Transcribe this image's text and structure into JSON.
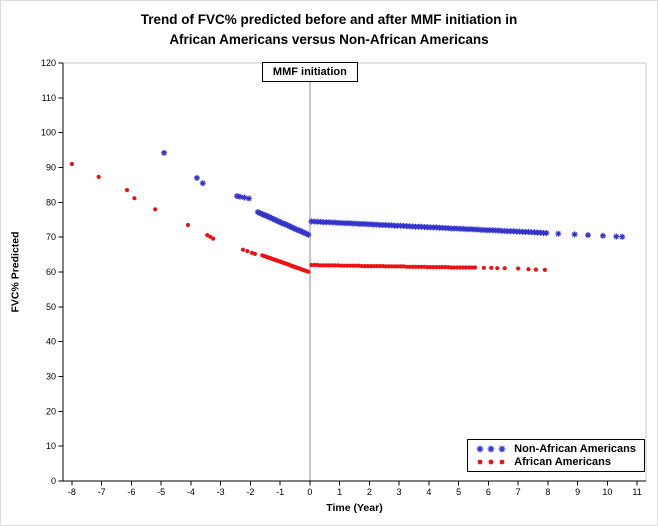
{
  "title": {
    "line1": "Trend of FVC% predicted before and after MMF initiation in",
    "line2": "African Americans versus Non-African Americans"
  },
  "chart_data": {
    "type": "scatter",
    "title": "Trend of FVC% predicted before and after MMF initiation in African Americans versus Non-African Americans",
    "xlabel": "Time (Year)",
    "ylabel": "FVC% Predicted",
    "xlim": [
      -8.3,
      11.3
    ],
    "ylim": [
      0,
      120
    ],
    "x_ticks": [
      -8,
      -7,
      -6,
      -5,
      -4,
      -3,
      -2,
      -1,
      0,
      1,
      2,
      3,
      4,
      5,
      6,
      7,
      8,
      9,
      10,
      11
    ],
    "y_ticks": [
      0,
      10,
      20,
      30,
      40,
      50,
      60,
      70,
      80,
      90,
      100,
      110,
      120
    ],
    "grid": false,
    "reference_line": {
      "x": 0,
      "label": "MMF initiation",
      "color": "#8c8c8c"
    },
    "legend": {
      "position": "bottom-right",
      "entries": [
        {
          "name": "Non-African Americans",
          "marker": "star",
          "color": "#3333cc"
        },
        {
          "name": "African Americans",
          "marker": "circle",
          "color": "#ee1111"
        }
      ]
    },
    "series": [
      {
        "name": "Non-African Americans",
        "marker": "star",
        "color": "#3333cc",
        "points": [
          [
            -4.9,
            94.2
          ],
          [
            -3.8,
            87.0
          ],
          [
            -3.6,
            85.5
          ],
          [
            -2.45,
            81.8
          ],
          [
            -2.35,
            81.6
          ],
          [
            -2.2,
            81.4
          ],
          [
            -2.05,
            81.1
          ],
          [
            -1.75,
            77.2
          ],
          [
            -1.7,
            77.0
          ],
          [
            -1.65,
            76.8
          ],
          [
            -1.6,
            76.6
          ],
          [
            -1.55,
            76.4
          ],
          [
            -1.5,
            76.3
          ],
          [
            -1.45,
            76.1
          ],
          [
            -1.4,
            75.9
          ],
          [
            -1.35,
            75.7
          ],
          [
            -1.3,
            75.5
          ],
          [
            -1.25,
            75.3
          ],
          [
            -1.2,
            75.1
          ],
          [
            -1.15,
            74.9
          ],
          [
            -1.1,
            74.7
          ],
          [
            -1.05,
            74.5
          ],
          [
            -1.0,
            74.3
          ],
          [
            -0.95,
            74.1
          ],
          [
            -0.9,
            73.9
          ],
          [
            -0.85,
            73.8
          ],
          [
            -0.8,
            73.6
          ],
          [
            -0.75,
            73.4
          ],
          [
            -0.7,
            73.2
          ],
          [
            -0.65,
            73.0
          ],
          [
            -0.6,
            72.8
          ],
          [
            -0.55,
            72.6
          ],
          [
            -0.5,
            72.4
          ],
          [
            -0.45,
            72.2
          ],
          [
            -0.4,
            72.0
          ],
          [
            -0.35,
            71.9
          ],
          [
            -0.3,
            71.7
          ],
          [
            -0.25,
            71.5
          ],
          [
            -0.2,
            71.3
          ],
          [
            -0.15,
            71.1
          ],
          [
            -0.1,
            70.9
          ],
          [
            -0.05,
            70.7
          ],
          [
            0.05,
            74.5
          ],
          [
            0.15,
            74.5
          ],
          [
            0.25,
            74.4
          ],
          [
            0.35,
            74.4
          ],
          [
            0.45,
            74.3
          ],
          [
            0.55,
            74.3
          ],
          [
            0.65,
            74.3
          ],
          [
            0.75,
            74.2
          ],
          [
            0.85,
            74.2
          ],
          [
            0.95,
            74.1
          ],
          [
            1.05,
            74.1
          ],
          [
            1.15,
            74.0
          ],
          [
            1.25,
            74.0
          ],
          [
            1.35,
            74.0
          ],
          [
            1.45,
            73.9
          ],
          [
            1.55,
            73.9
          ],
          [
            1.65,
            73.8
          ],
          [
            1.75,
            73.8
          ],
          [
            1.85,
            73.8
          ],
          [
            1.95,
            73.7
          ],
          [
            2.05,
            73.7
          ],
          [
            2.15,
            73.6
          ],
          [
            2.25,
            73.6
          ],
          [
            2.35,
            73.5
          ],
          [
            2.45,
            73.5
          ],
          [
            2.55,
            73.5
          ],
          [
            2.65,
            73.4
          ],
          [
            2.75,
            73.4
          ],
          [
            2.85,
            73.3
          ],
          [
            2.95,
            73.3
          ],
          [
            3.05,
            73.3
          ],
          [
            3.15,
            73.2
          ],
          [
            3.25,
            73.2
          ],
          [
            3.35,
            73.1
          ],
          [
            3.45,
            73.1
          ],
          [
            3.55,
            73.0
          ],
          [
            3.65,
            73.0
          ],
          [
            3.75,
            73.0
          ],
          [
            3.85,
            72.9
          ],
          [
            3.95,
            72.9
          ],
          [
            4.05,
            72.8
          ],
          [
            4.15,
            72.8
          ],
          [
            4.25,
            72.8
          ],
          [
            4.35,
            72.7
          ],
          [
            4.45,
            72.7
          ],
          [
            4.55,
            72.6
          ],
          [
            4.65,
            72.6
          ],
          [
            4.75,
            72.5
          ],
          [
            4.85,
            72.5
          ],
          [
            4.95,
            72.5
          ],
          [
            5.05,
            72.4
          ],
          [
            5.15,
            72.4
          ],
          [
            5.25,
            72.3
          ],
          [
            5.35,
            72.3
          ],
          [
            5.45,
            72.3
          ],
          [
            5.55,
            72.2
          ],
          [
            5.65,
            72.2
          ],
          [
            5.75,
            72.1
          ],
          [
            5.85,
            72.1
          ],
          [
            5.95,
            72.0
          ],
          [
            6.05,
            72.0
          ],
          [
            6.15,
            72.0
          ],
          [
            6.25,
            71.9
          ],
          [
            6.35,
            71.9
          ],
          [
            6.45,
            71.8
          ],
          [
            6.55,
            71.8
          ],
          [
            6.65,
            71.7
          ],
          [
            6.75,
            71.7
          ],
          [
            6.85,
            71.7
          ],
          [
            6.95,
            71.6
          ],
          [
            7.05,
            71.6
          ],
          [
            7.15,
            71.5
          ],
          [
            7.25,
            71.5
          ],
          [
            7.35,
            71.5
          ],
          [
            7.45,
            71.4
          ],
          [
            7.55,
            71.4
          ],
          [
            7.65,
            71.3
          ],
          [
            7.75,
            71.3
          ],
          [
            7.85,
            71.2
          ],
          [
            7.95,
            71.2
          ],
          [
            8.35,
            71.0
          ],
          [
            8.9,
            70.8
          ],
          [
            9.35,
            70.6
          ],
          [
            9.85,
            70.4
          ],
          [
            10.3,
            70.2
          ],
          [
            10.5,
            70.1
          ]
        ]
      },
      {
        "name": "African Americans",
        "marker": "circle",
        "color": "#ee1111",
        "points": [
          [
            -8.0,
            91.0
          ],
          [
            -7.1,
            87.3
          ],
          [
            -6.15,
            83.5
          ],
          [
            -5.9,
            81.2
          ],
          [
            -5.2,
            78.0
          ],
          [
            -4.1,
            73.5
          ],
          [
            -3.45,
            70.6
          ],
          [
            -3.35,
            70.1
          ],
          [
            -3.25,
            69.6
          ],
          [
            -2.25,
            66.4
          ],
          [
            -2.1,
            66.0
          ],
          [
            -1.95,
            65.5
          ],
          [
            -1.85,
            65.2
          ],
          [
            -1.6,
            64.8
          ],
          [
            -1.55,
            64.6
          ],
          [
            -1.5,
            64.5
          ],
          [
            -1.45,
            64.3
          ],
          [
            -1.4,
            64.2
          ],
          [
            -1.35,
            64.0
          ],
          [
            -1.3,
            63.9
          ],
          [
            -1.25,
            63.7
          ],
          [
            -1.2,
            63.6
          ],
          [
            -1.15,
            63.4
          ],
          [
            -1.1,
            63.3
          ],
          [
            -1.05,
            63.1
          ],
          [
            -1.0,
            63.0
          ],
          [
            -0.95,
            62.8
          ],
          [
            -0.9,
            62.7
          ],
          [
            -0.85,
            62.5
          ],
          [
            -0.8,
            62.4
          ],
          [
            -0.75,
            62.2
          ],
          [
            -0.7,
            62.1
          ],
          [
            -0.65,
            61.9
          ],
          [
            -0.6,
            61.7
          ],
          [
            -0.55,
            61.6
          ],
          [
            -0.5,
            61.4
          ],
          [
            -0.45,
            61.3
          ],
          [
            -0.4,
            61.1
          ],
          [
            -0.35,
            61.0
          ],
          [
            -0.3,
            60.8
          ],
          [
            -0.25,
            60.7
          ],
          [
            -0.2,
            60.5
          ],
          [
            -0.15,
            60.4
          ],
          [
            -0.1,
            60.2
          ],
          [
            -0.05,
            60.1
          ],
          [
            0.05,
            62.0
          ],
          [
            0.15,
            62.0
          ],
          [
            0.25,
            62.0
          ],
          [
            0.35,
            61.9
          ],
          [
            0.45,
            61.9
          ],
          [
            0.55,
            61.9
          ],
          [
            0.65,
            61.9
          ],
          [
            0.75,
            61.9
          ],
          [
            0.85,
            61.9
          ],
          [
            0.95,
            61.9
          ],
          [
            1.05,
            61.8
          ],
          [
            1.15,
            61.8
          ],
          [
            1.25,
            61.8
          ],
          [
            1.35,
            61.8
          ],
          [
            1.45,
            61.8
          ],
          [
            1.55,
            61.8
          ],
          [
            1.65,
            61.8
          ],
          [
            1.75,
            61.7
          ],
          [
            1.85,
            61.7
          ],
          [
            1.95,
            61.7
          ],
          [
            2.05,
            61.7
          ],
          [
            2.15,
            61.7
          ],
          [
            2.25,
            61.7
          ],
          [
            2.35,
            61.7
          ],
          [
            2.45,
            61.7
          ],
          [
            2.55,
            61.6
          ],
          [
            2.65,
            61.6
          ],
          [
            2.75,
            61.6
          ],
          [
            2.85,
            61.6
          ],
          [
            2.95,
            61.6
          ],
          [
            3.05,
            61.6
          ],
          [
            3.15,
            61.6
          ],
          [
            3.25,
            61.5
          ],
          [
            3.35,
            61.5
          ],
          [
            3.45,
            61.5
          ],
          [
            3.55,
            61.5
          ],
          [
            3.65,
            61.5
          ],
          [
            3.75,
            61.5
          ],
          [
            3.85,
            61.5
          ],
          [
            3.95,
            61.4
          ],
          [
            4.05,
            61.4
          ],
          [
            4.15,
            61.4
          ],
          [
            4.25,
            61.4
          ],
          [
            4.35,
            61.4
          ],
          [
            4.45,
            61.4
          ],
          [
            4.55,
            61.4
          ],
          [
            4.65,
            61.4
          ],
          [
            4.75,
            61.3
          ],
          [
            4.85,
            61.3
          ],
          [
            4.95,
            61.3
          ],
          [
            5.05,
            61.3
          ],
          [
            5.15,
            61.3
          ],
          [
            5.25,
            61.3
          ],
          [
            5.35,
            61.3
          ],
          [
            5.45,
            61.3
          ],
          [
            5.55,
            61.3
          ],
          [
            5.85,
            61.2
          ],
          [
            6.1,
            61.2
          ],
          [
            6.3,
            61.1
          ],
          [
            6.55,
            61.1
          ],
          [
            7.0,
            61.0
          ],
          [
            7.35,
            60.8
          ],
          [
            7.6,
            60.7
          ],
          [
            7.9,
            60.6
          ]
        ]
      }
    ]
  }
}
